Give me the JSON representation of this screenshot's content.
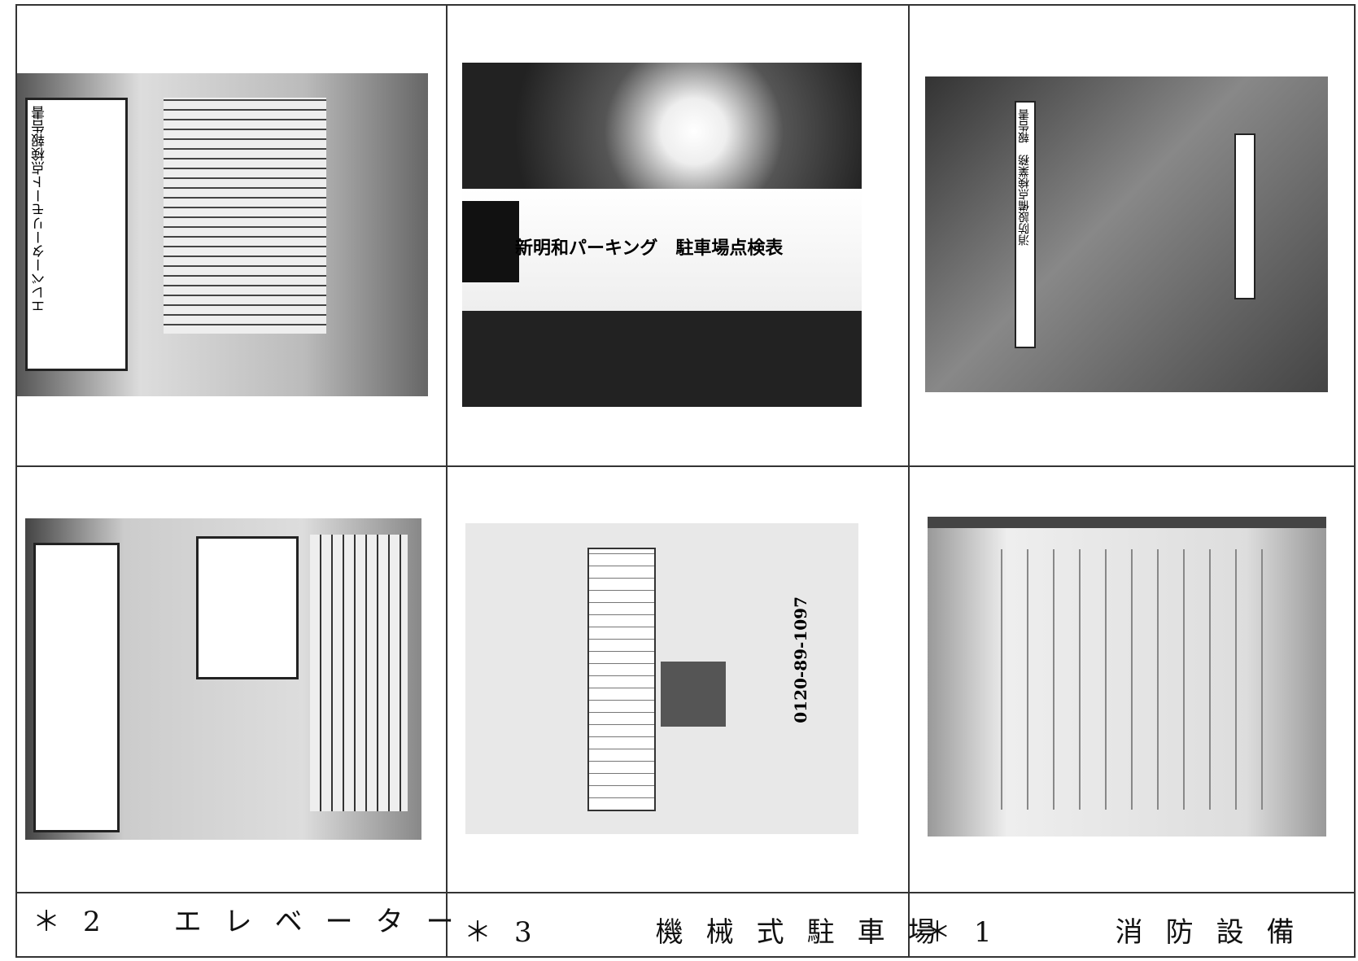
{
  "cells": [
    {
      "photo_text": "エレベーターリモート点検報告書",
      "label": "＊2　エレベーター"
    },
    {
      "photo_text": "新明和パーキング　駐車場点検表",
      "sub_text": "0120-89-1097",
      "label": "＊3　　機械式駐車場"
    },
    {
      "photo_text": "消防設備点検業務　報告書",
      "label": "＊1　　消防設備"
    }
  ]
}
